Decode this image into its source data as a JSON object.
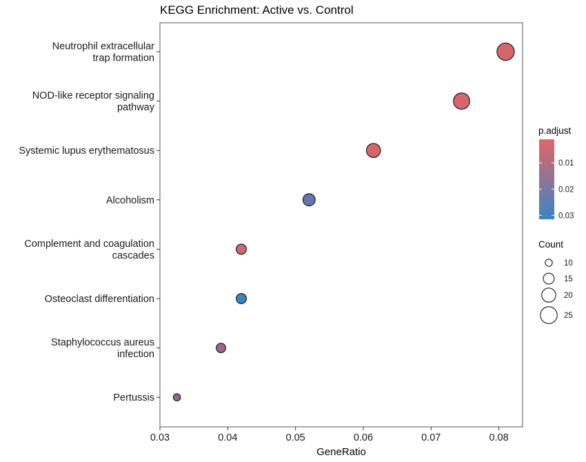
{
  "chart_data": {
    "type": "scatter",
    "title": "KEGG Enrichment: Active vs. Control",
    "xlabel": "GeneRatio",
    "ylabel": "",
    "xlim": [
      0.03,
      0.0835
    ],
    "x_ticks": [
      "0.03",
      "0.04",
      "0.05",
      "0.06",
      "0.07",
      "0.08"
    ],
    "x_tick_values": [
      0.03,
      0.04,
      0.05,
      0.06,
      0.07,
      0.08
    ],
    "grid": false,
    "legend_position": "right",
    "points": [
      {
        "term": [
          "Neutrophil extracellular",
          "trap formation"
        ],
        "gene_ratio": 0.081,
        "count": 26,
        "p_adjust": 0.003
      },
      {
        "term": [
          "NOD-like receptor signaling",
          "pathway"
        ],
        "gene_ratio": 0.0745,
        "count": 24,
        "p_adjust": 0.003
      },
      {
        "term": [
          "Systemic lupus erythematosus"
        ],
        "gene_ratio": 0.0615,
        "count": 20,
        "p_adjust": 0.003
      },
      {
        "term": [
          "Alcoholism"
        ],
        "gene_ratio": 0.052,
        "count": 17,
        "p_adjust": 0.024
      },
      {
        "term": [
          "Complement and coagulation",
          "cascades"
        ],
        "gene_ratio": 0.042,
        "count": 14,
        "p_adjust": 0.004
      },
      {
        "term": [
          "Osteoclast differentiation"
        ],
        "gene_ratio": 0.042,
        "count": 14,
        "p_adjust": 0.031
      },
      {
        "term": [
          "Staphylococcus aureus",
          "infection"
        ],
        "gene_ratio": 0.039,
        "count": 13,
        "p_adjust": 0.013
      },
      {
        "term": [
          "Pertussis"
        ],
        "gene_ratio": 0.0325,
        "count": 10,
        "p_adjust": 0.013
      }
    ],
    "color_legend": {
      "title": "p.adjust",
      "labels": [
        "0.01",
        "0.02",
        "0.03"
      ],
      "values": [
        0.01,
        0.02,
        0.03
      ],
      "range": [
        0.001,
        0.0315
      ],
      "color_low_padj": "#e06666",
      "color_high_padj": "#3a85c5"
    },
    "size_legend": {
      "title": "Count",
      "labels": [
        "10",
        "15",
        "20",
        "25"
      ],
      "values": [
        10,
        15,
        20,
        25
      ]
    }
  }
}
